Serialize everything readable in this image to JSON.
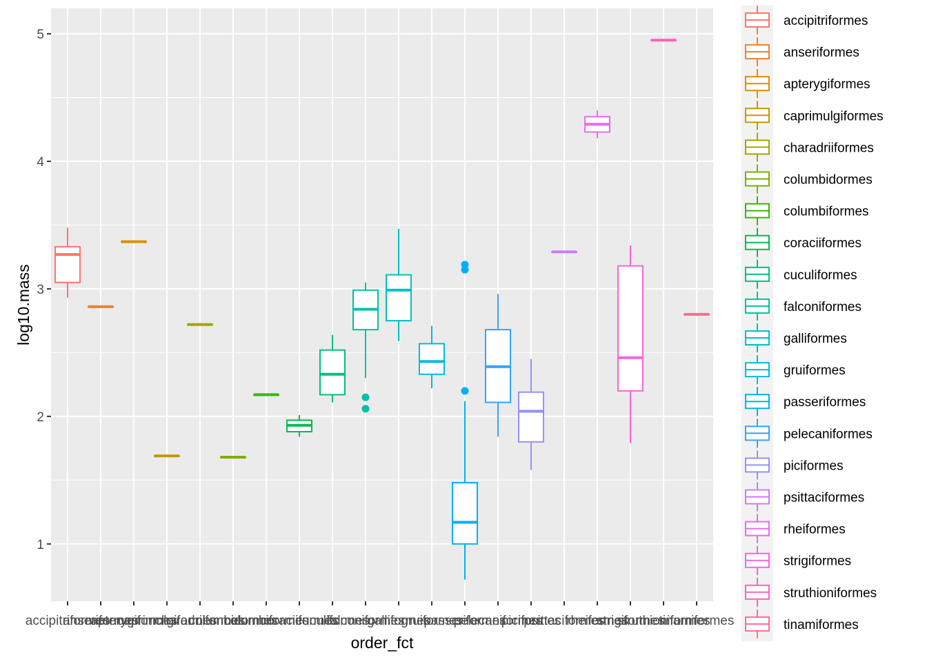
{
  "chart_data": {
    "type": "box",
    "xlabel": "order_fct",
    "ylabel": "log10.mass",
    "ylim": [
      0.55,
      5.2
    ],
    "y_ticks": [
      1,
      2,
      3,
      4,
      5
    ],
    "y_tick_labels": [
      "1",
      "2",
      "3",
      "4",
      "5"
    ],
    "grid": true,
    "legend_position": "right",
    "categories": [
      "accipitriformes",
      "anseriformes",
      "apterygiformes",
      "caprimulgiformes",
      "charadriiformes",
      "columbidormes",
      "columbiformes",
      "coraciiformes",
      "cuculiformes",
      "falconiformes",
      "galliformes",
      "gruiformes",
      "passeriformes",
      "pelecaniformes",
      "piciformes",
      "psittaciformes",
      "rheiformes",
      "strigiformes",
      "struthioniformes",
      "tinamiformes"
    ],
    "colors": [
      "#F8766D",
      "#EA8331",
      "#D89000",
      "#C09B00",
      "#A3A500",
      "#7CAE00",
      "#39B600",
      "#00BB4E",
      "#00BF7D",
      "#00C1A3",
      "#00BFC4",
      "#00BAE0",
      "#00B0F6",
      "#35A2FF",
      "#9590FF",
      "#C77CFF",
      "#E76BF3",
      "#FA62DB",
      "#FF62BC",
      "#FF6C91"
    ],
    "boxes": [
      {
        "min": 2.93,
        "q1": 3.05,
        "median": 3.27,
        "q3": 3.33,
        "max": 3.48,
        "outliers": []
      },
      {
        "min": 2.86,
        "q1": 2.86,
        "median": 2.86,
        "q3": 2.86,
        "max": 2.86,
        "outliers": []
      },
      {
        "min": 3.37,
        "q1": 3.37,
        "median": 3.37,
        "q3": 3.37,
        "max": 3.37,
        "outliers": []
      },
      {
        "min": 1.69,
        "q1": 1.69,
        "median": 1.69,
        "q3": 1.69,
        "max": 1.69,
        "outliers": []
      },
      {
        "min": 2.72,
        "q1": 2.72,
        "median": 2.72,
        "q3": 2.72,
        "max": 2.72,
        "outliers": []
      },
      {
        "min": 1.68,
        "q1": 1.68,
        "median": 1.68,
        "q3": 1.68,
        "max": 1.68,
        "outliers": []
      },
      {
        "min": 2.17,
        "q1": 2.17,
        "median": 2.17,
        "q3": 2.17,
        "max": 2.17,
        "outliers": []
      },
      {
        "min": 1.84,
        "q1": 1.88,
        "median": 1.93,
        "q3": 1.97,
        "max": 2.01,
        "outliers": []
      },
      {
        "min": 2.11,
        "q1": 2.17,
        "median": 2.33,
        "q3": 2.52,
        "max": 2.64,
        "outliers": []
      },
      {
        "min": 2.3,
        "q1": 2.68,
        "median": 2.84,
        "q3": 2.99,
        "max": 3.05,
        "outliers": [
          2.15,
          2.06
        ]
      },
      {
        "min": 2.59,
        "q1": 2.75,
        "median": 2.99,
        "q3": 3.11,
        "max": 3.47,
        "outliers": []
      },
      {
        "min": 2.22,
        "q1": 2.33,
        "median": 2.43,
        "q3": 2.57,
        "max": 2.71,
        "outliers": []
      },
      {
        "min": 0.72,
        "q1": 1.0,
        "median": 1.17,
        "q3": 1.48,
        "max": 2.12,
        "outliers": [
          2.2,
          3.15,
          3.19
        ]
      },
      {
        "min": 1.84,
        "q1": 2.11,
        "median": 2.39,
        "q3": 2.68,
        "max": 2.96,
        "outliers": []
      },
      {
        "min": 1.58,
        "q1": 1.8,
        "median": 2.04,
        "q3": 2.19,
        "max": 2.45,
        "outliers": []
      },
      {
        "min": 3.29,
        "q1": 3.29,
        "median": 3.29,
        "q3": 3.29,
        "max": 3.29,
        "outliers": []
      },
      {
        "min": 4.18,
        "q1": 4.23,
        "median": 4.29,
        "q3": 4.35,
        "max": 4.4,
        "outliers": []
      },
      {
        "min": 1.79,
        "q1": 2.2,
        "median": 2.46,
        "q3": 3.18,
        "max": 3.34,
        "outliers": []
      },
      {
        "min": 4.95,
        "q1": 4.95,
        "median": 4.95,
        "q3": 4.95,
        "max": 4.95,
        "outliers": []
      },
      {
        "min": 2.8,
        "q1": 2.8,
        "median": 2.8,
        "q3": 2.8,
        "max": 2.8,
        "outliers": []
      }
    ]
  }
}
